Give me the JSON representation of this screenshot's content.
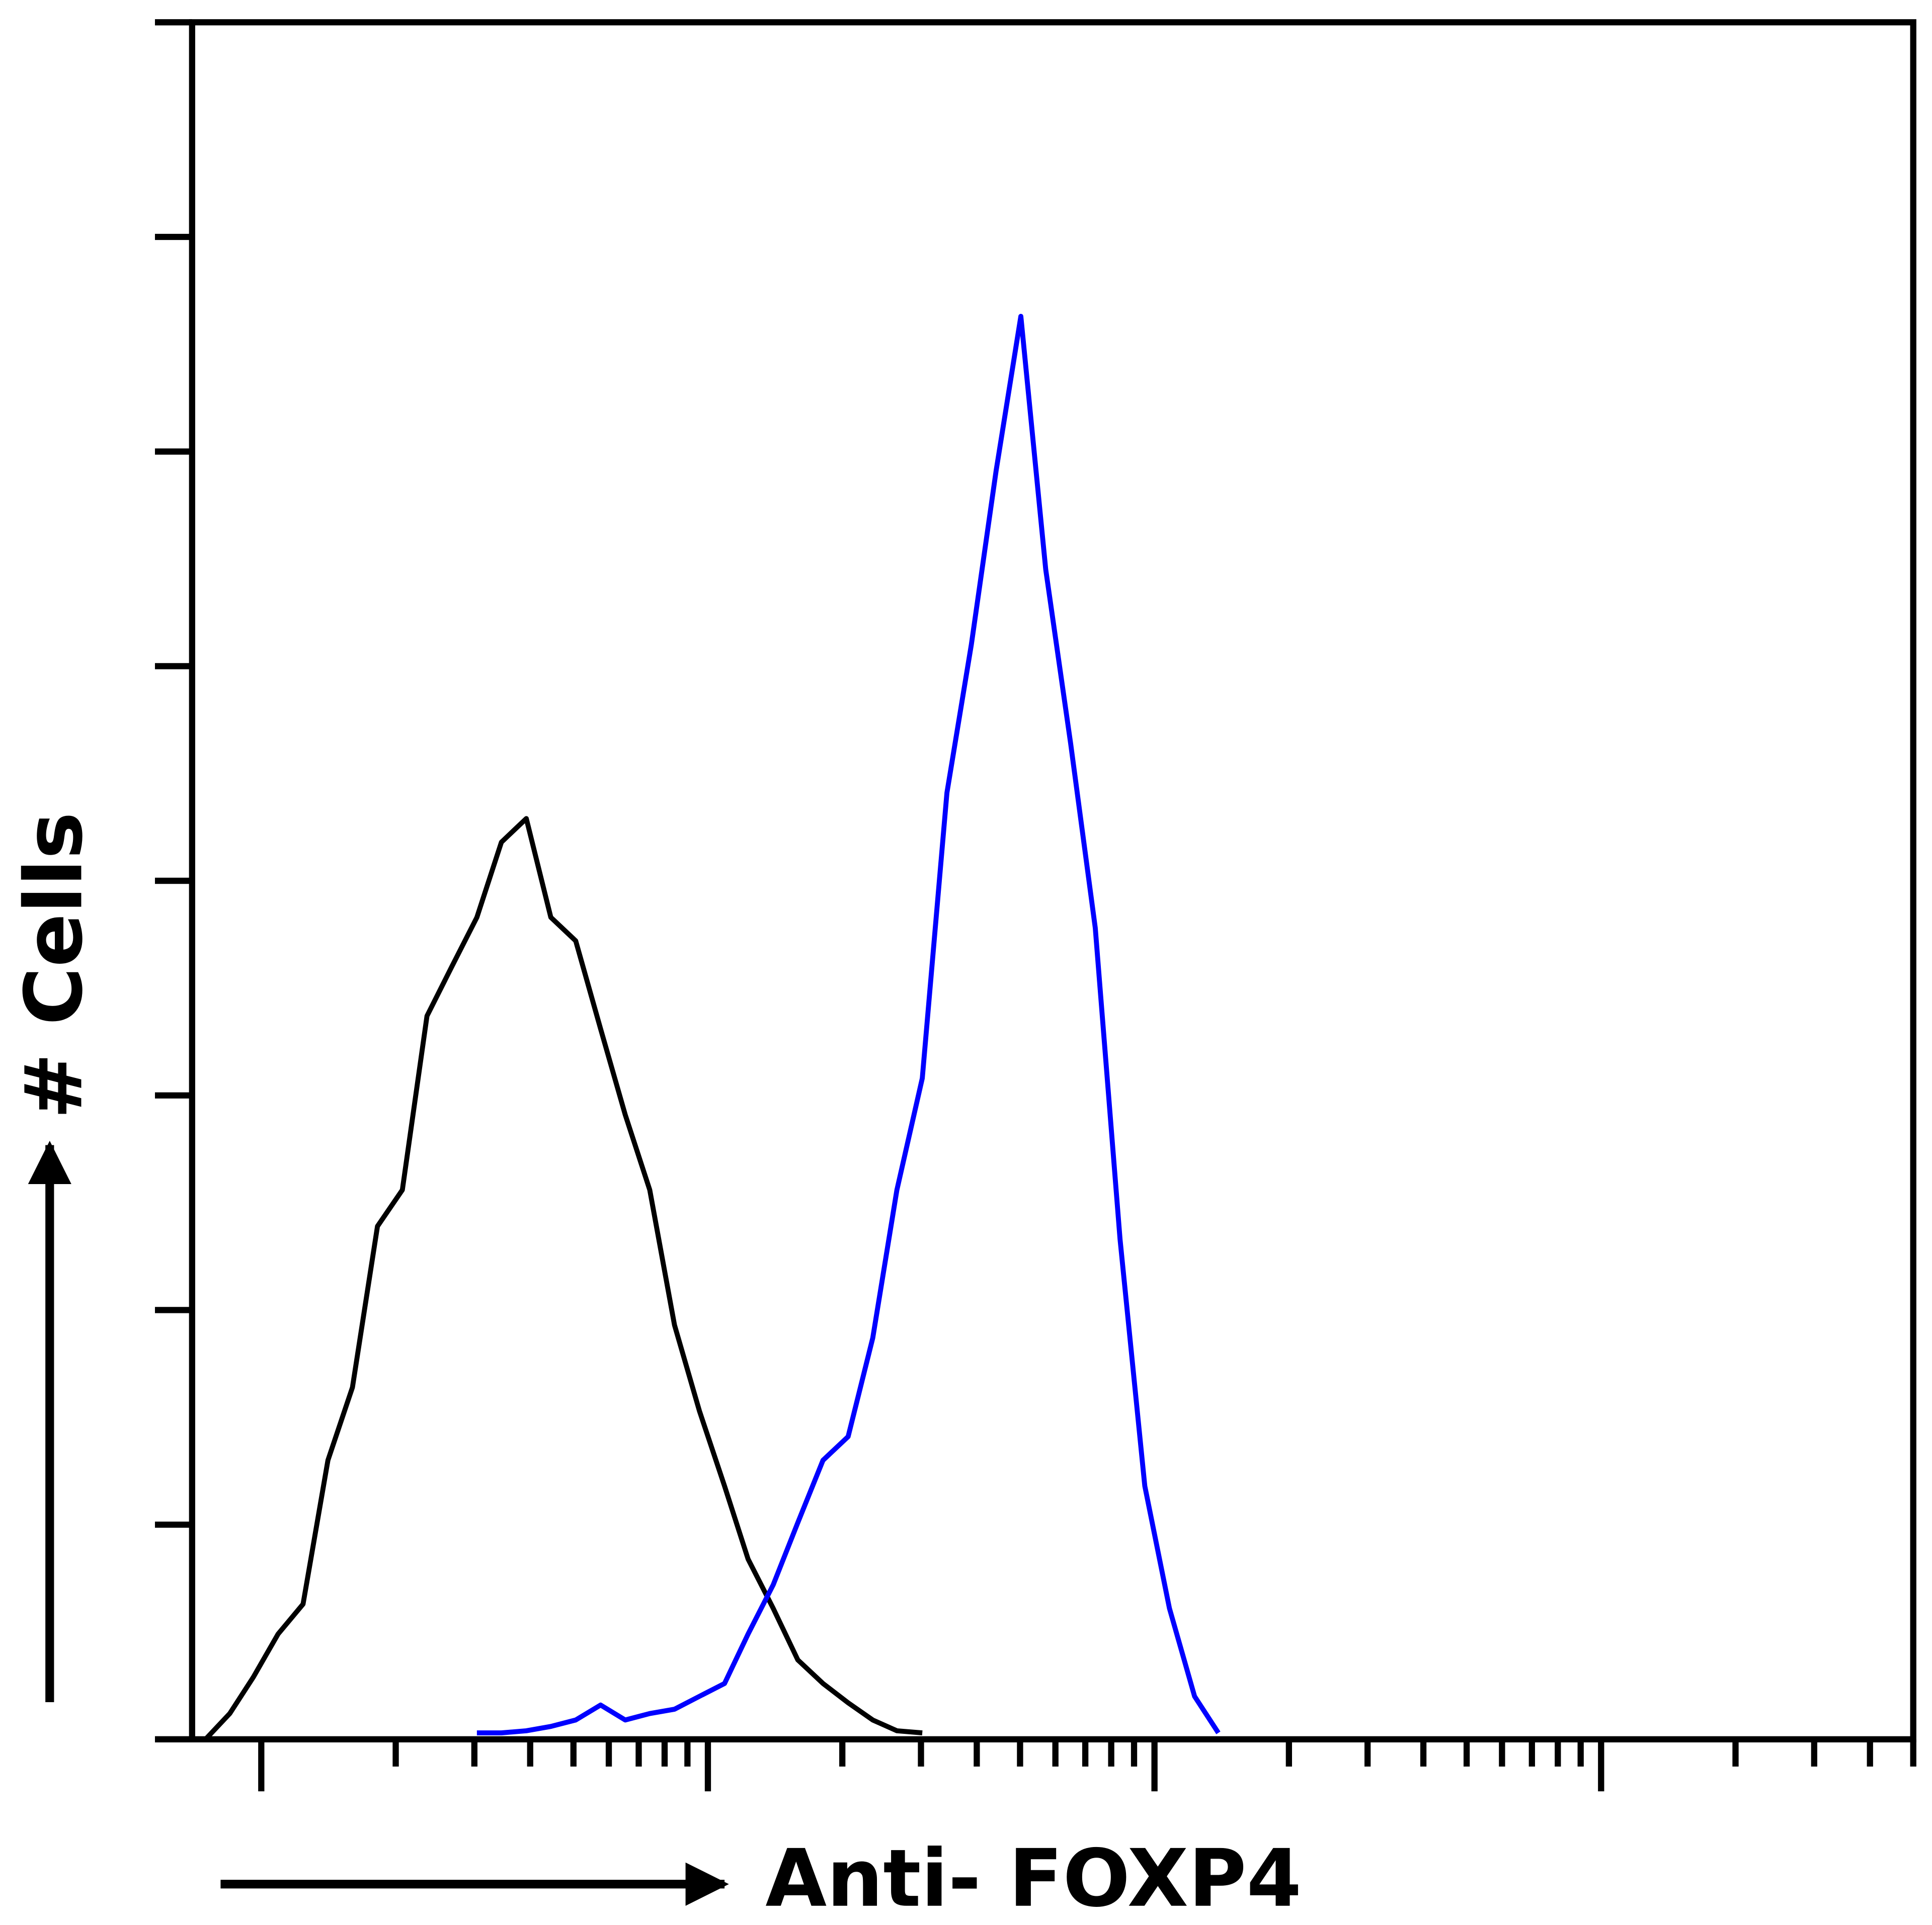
{
  "chart_data": {
    "type": "line",
    "x_label": "Anti- FOXP4",
    "y_label": "# Cells",
    "xscale": "log",
    "xlim": [
      0.7,
      5000
    ],
    "ylim": [
      0,
      8
    ],
    "xticks": [
      1,
      2,
      3,
      4,
      5,
      6,
      7,
      8,
      9,
      10,
      20,
      30,
      40,
      50,
      60,
      70,
      80,
      90,
      100,
      200,
      300,
      400,
      500,
      600,
      700,
      800,
      900,
      1000,
      2000,
      3000,
      4000,
      5000
    ],
    "yticks": [
      0,
      1,
      2,
      3,
      4,
      5,
      6,
      7,
      8
    ],
    "x": [
      0.75,
      0.85,
      0.96,
      1.09,
      1.24,
      1.41,
      1.6,
      1.82,
      2.07,
      2.35,
      2.67,
      3.04,
      3.45,
      3.92,
      4.45,
      5.06,
      5.75,
      6.53,
      7.41,
      8.42,
      9.57,
      10.9,
      12.3,
      14.0,
      15.9,
      18.1,
      20.6,
      23.4,
      26.5,
      30.2,
      34.3,
      38.9,
      44.2,
      50.2,
      57.1,
      64.9,
      73.7,
      83.7,
      95.1,
      108,
      123,
      139
    ],
    "series": [
      {
        "color": "#000000",
        "values": [
          0,
          0.12,
          0.29,
          0.49,
          0.63,
          1.3,
          1.64,
          2.39,
          2.56,
          3.37,
          3.6,
          3.83,
          4.18,
          4.29,
          3.83,
          3.72,
          3.31,
          2.91,
          2.56,
          1.93,
          1.53,
          1.18,
          0.84,
          0.61,
          0.37,
          0.26,
          0.17,
          0.09,
          0.04,
          0.03,
          null,
          null,
          null,
          null,
          null,
          null,
          null,
          null,
          null,
          null,
          null,
          null
        ]
      },
      {
        "color": "#0000ff",
        "values": [
          null,
          null,
          null,
          null,
          null,
          null,
          null,
          null,
          null,
          null,
          null,
          0.03,
          0.03,
          0.04,
          0.06,
          0.09,
          0.16,
          0.09,
          0.12,
          0.14,
          0.2,
          0.26,
          0.49,
          0.72,
          1.01,
          1.3,
          1.41,
          1.87,
          2.56,
          3.08,
          4.41,
          5.1,
          5.91,
          6.63,
          5.45,
          4.64,
          3.78,
          2.33,
          1.18,
          0.61,
          0.2,
          0.03
        ]
      }
    ]
  }
}
